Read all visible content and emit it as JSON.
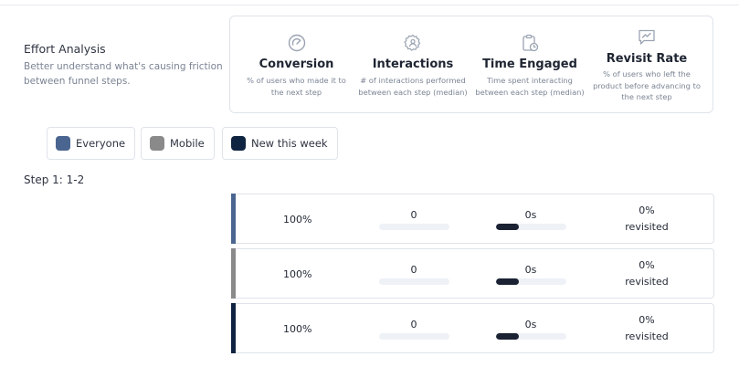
{
  "effort": {
    "title": "Effort Analysis",
    "description_line1": "Better understand what's causing friction",
    "description_line2": "between funnel steps."
  },
  "metrics": [
    {
      "icon": "gauge-icon",
      "name": "Conversion",
      "desc_lines": [
        "% of users who made it to",
        "the next step"
      ]
    },
    {
      "icon": "gear-user-icon",
      "name": "Interactions",
      "desc_lines": [
        "# of interactions performed",
        "between each step (median)"
      ]
    },
    {
      "icon": "clipboard-clock-icon",
      "name": "Time Engaged",
      "desc_lines": [
        "Time spent interacting",
        "between each step (median)"
      ]
    },
    {
      "icon": "chat-chart-icon",
      "name": "Revisit Rate",
      "desc_lines": [
        "% of users who left the",
        "product before advancing to",
        "the next step"
      ]
    }
  ],
  "segments": [
    {
      "label": "Everyone",
      "color": "#4a6590"
    },
    {
      "label": "Mobile",
      "color": "#8a8a8a"
    },
    {
      "label": "New this week",
      "color": "#0f2440"
    }
  ],
  "step": {
    "label": "Step 1: 1-2"
  },
  "rows": [
    {
      "segment": "Everyone",
      "conversion": "100%",
      "interactions": "0",
      "interactions_fill": 0,
      "time": "0s",
      "time_fill": 0.33,
      "revisit_value": "0%",
      "revisit_label": "revisited"
    },
    {
      "segment": "Mobile",
      "conversion": "100%",
      "interactions": "0",
      "interactions_fill": 0,
      "time": "0s",
      "time_fill": 0.33,
      "revisit_value": "0%",
      "revisit_label": "revisited"
    },
    {
      "segment": "New this week",
      "conversion": "100%",
      "interactions": "0",
      "interactions_fill": 0,
      "time": "0s",
      "time_fill": 0.33,
      "revisit_value": "0%",
      "revisit_label": "revisited"
    }
  ]
}
